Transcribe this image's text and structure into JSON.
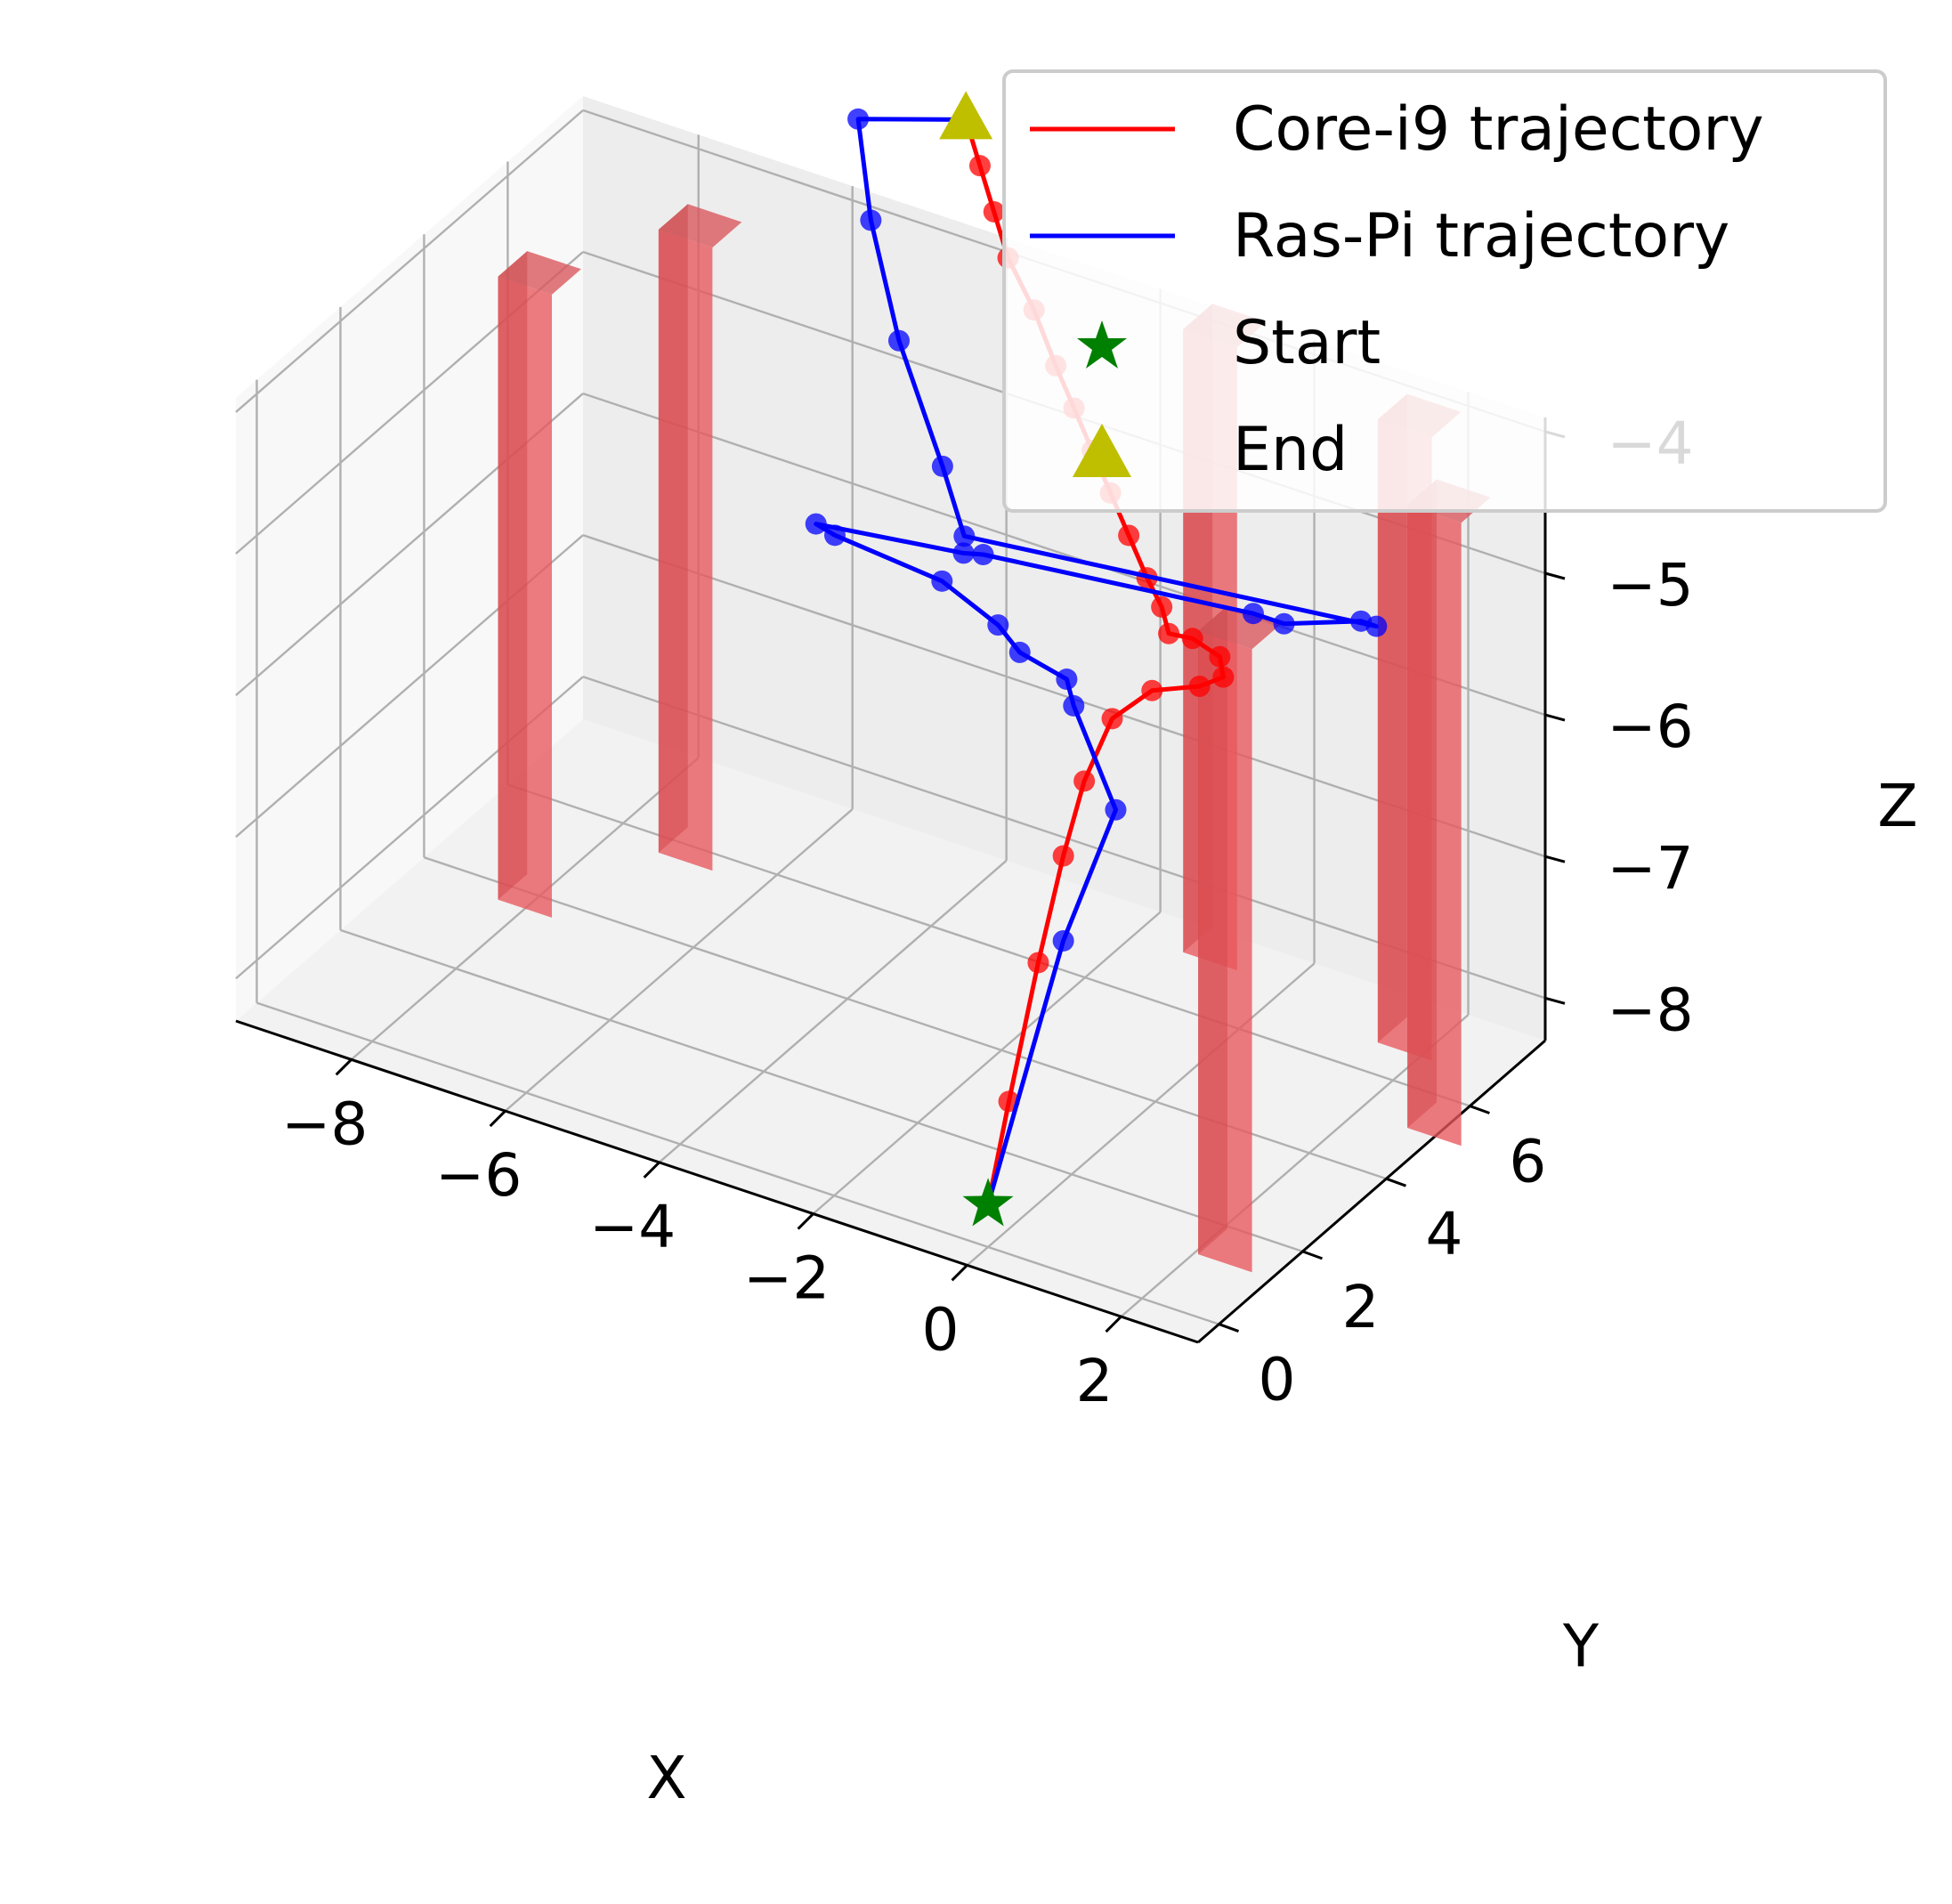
{
  "chart_data": {
    "type": "line3d",
    "title": "",
    "xlabel": "X",
    "ylabel": "Y",
    "zlabel": "Z",
    "xlim": [
      -9.5,
      3.0
    ],
    "ylim": [
      -0.5,
      7.8
    ],
    "zlim": [
      -8.3,
      -3.9
    ],
    "xticks": [
      -8,
      -6,
      -4,
      -2,
      0,
      2
    ],
    "yticks": [
      0,
      2,
      4,
      6
    ],
    "zticks": [
      -4,
      -5,
      -6,
      -7,
      -8
    ],
    "xtick_labels": [
      "−8",
      "−6",
      "−4",
      "−2",
      "0",
      "2"
    ],
    "ytick_labels": [
      "0",
      "2",
      "4",
      "6"
    ],
    "ztick_labels": [
      "−4",
      "−5",
      "−6",
      "−7",
      "−8"
    ],
    "grid": true,
    "legend": {
      "position": "top-right",
      "entries": [
        {
          "label": "Core-i9 trajectory",
          "marker": "line",
          "color": "#ff0000"
        },
        {
          "label": "Ras-Pi trajectory",
          "marker": "line",
          "color": "#0000ff"
        },
        {
          "label": "Start",
          "marker": "star",
          "color": "#008000"
        },
        {
          "label": "End",
          "marker": "triangle",
          "color": "#bfbf00"
        }
      ]
    },
    "obstacles": {
      "color": "#e8575c",
      "z_range": [
        -8.3,
        -3.9
      ],
      "centers": [
        {
          "x": -8.0,
          "y": 4.0
        },
        {
          "x": -7.0,
          "y": 6.0
        },
        {
          "x": -1.0,
          "y": 7.5
        },
        {
          "x": 1.8,
          "y": 7.0
        },
        {
          "x": 3.0,
          "y": 5.5
        },
        {
          "x": 2.4,
          "y": 1.6
        }
      ]
    },
    "series": [
      {
        "name": "Core-i9 trajectory",
        "color": "#ff0000",
        "points": [
          [
            0.0,
            0.0,
            -8.0
          ],
          [
            0.0,
            0.5,
            -7.4
          ],
          [
            0.0,
            1.2,
            -6.6
          ],
          [
            0.0,
            1.8,
            -6.0
          ],
          [
            0.0,
            2.3,
            -5.6
          ],
          [
            0.2,
            2.6,
            -5.2
          ],
          [
            0.5,
            3.0,
            -5.05
          ],
          [
            0.9,
            3.4,
            -5.05
          ],
          [
            1.1,
            3.6,
            -5.0
          ],
          [
            1.0,
            3.7,
            -4.9
          ],
          [
            0.7,
            3.6,
            -4.8
          ],
          [
            0.5,
            3.4,
            -4.75
          ],
          [
            0.3,
            3.6,
            -4.65
          ],
          [
            0.0,
            3.8,
            -4.55
          ],
          [
            -0.4,
            4.1,
            -4.4
          ],
          [
            -0.8,
            4.4,
            -4.25
          ],
          [
            -1.2,
            4.7,
            -4.1
          ],
          [
            -1.6,
            5.0,
            -3.95
          ],
          [
            -2.0,
            5.3,
            -3.8
          ],
          [
            -2.5,
            5.7,
            -3.6
          ],
          [
            -3.0,
            6.0,
            -3.4
          ],
          [
            -3.4,
            6.4,
            -3.25
          ],
          [
            -3.8,
            6.8,
            -3.1
          ],
          [
            -4.2,
            7.2,
            -2.95
          ]
        ]
      },
      {
        "name": "Ras-Pi trajectory",
        "color": "#0000ff",
        "points": [
          [
            0.0,
            0.0,
            -8.0
          ],
          [
            0.0,
            1.8,
            -6.6
          ],
          [
            0.3,
            2.5,
            -5.8
          ],
          [
            -0.3,
            2.6,
            -5.2
          ],
          [
            -0.5,
            2.8,
            -5.1
          ],
          [
            -1.0,
            2.6,
            -4.95
          ],
          [
            -1.5,
            3.0,
            -4.95
          ],
          [
            -2.5,
            3.5,
            -4.95
          ],
          [
            -4.0,
            3.7,
            -4.95
          ],
          [
            -4.3,
            3.8,
            -4.95
          ],
          [
            -2.6,
            4.2,
            -4.95
          ],
          [
            -2.4,
            4.3,
            -4.95
          ],
          [
            1.0,
            4.5,
            -4.8
          ],
          [
            1.4,
            4.5,
            -4.8
          ],
          [
            2.4,
            4.5,
            -4.6
          ],
          [
            2.6,
            4.5,
            -4.6
          ],
          [
            -2.7,
            4.4,
            -4.9
          ],
          [
            -3.2,
            4.8,
            -4.6
          ],
          [
            -4.2,
            5.6,
            -4.1
          ],
          [
            -5.0,
            6.4,
            -3.6
          ],
          [
            -5.6,
            7.2,
            -3.2
          ],
          [
            -4.2,
            7.2,
            -2.95
          ]
        ]
      }
    ],
    "start": [
      0.0,
      0.0,
      -8.0
    ],
    "end": [
      -4.2,
      7.2,
      -2.95
    ]
  }
}
